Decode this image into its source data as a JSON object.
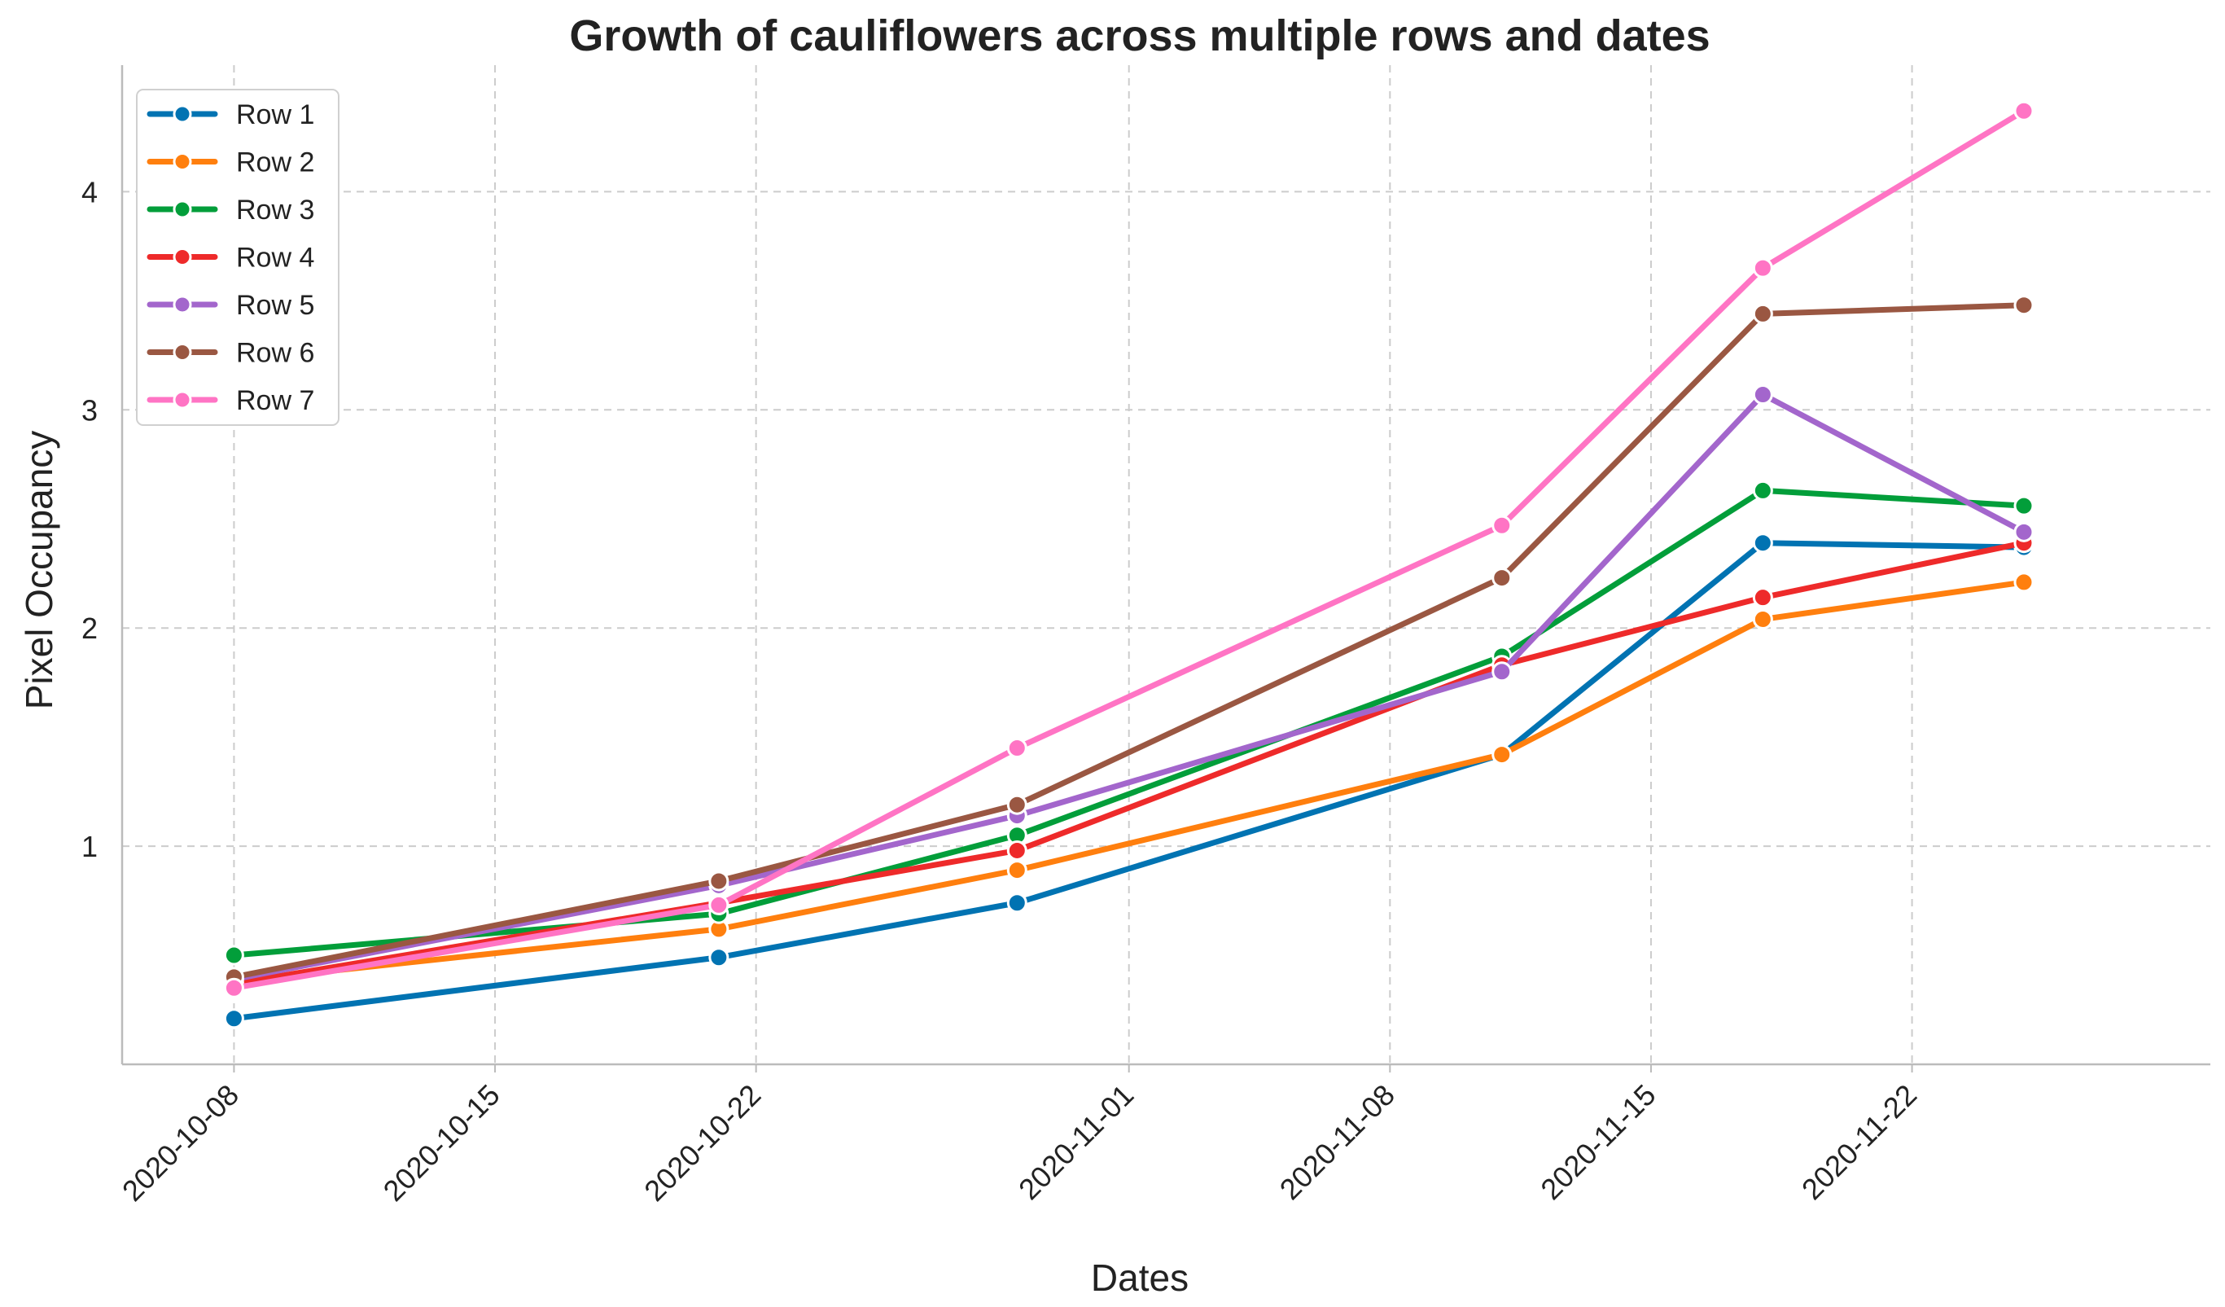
{
  "chart_data": {
    "type": "line",
    "title": "Growth of cauliflowers across multiple rows and dates",
    "xlabel": "Dates",
    "ylabel": "Pixel Occupancy",
    "x": [
      "2020-10-08",
      "2020-10-21",
      "2020-10-29",
      "2020-11-11",
      "2020-11-18",
      "2020-11-25"
    ],
    "xlim": [
      "2020-10-05",
      "2020-11-30"
    ],
    "ylim": [
      0.0,
      4.58
    ],
    "xticks": [
      "2020-10-08",
      "2020-10-15",
      "2020-10-22",
      "2020-11-01",
      "2020-11-08",
      "2020-11-15",
      "2020-11-22"
    ],
    "yticks": [
      1,
      2,
      3,
      4
    ],
    "grid": true,
    "legend_position": "top-left",
    "series": [
      {
        "name": "Row 1",
        "color": "#0173b2",
        "values": [
          0.21,
          0.49,
          0.74,
          1.42,
          2.39,
          2.37
        ]
      },
      {
        "name": "Row 2",
        "color": "#ff7f0e",
        "values": [
          0.38,
          0.62,
          0.89,
          1.42,
          2.04,
          2.21
        ]
      },
      {
        "name": "Row 3",
        "color": "#029e3a",
        "values": [
          0.5,
          0.69,
          1.05,
          1.87,
          2.63,
          2.56
        ]
      },
      {
        "name": "Row 4",
        "color": "#ee2a2a",
        "values": [
          0.37,
          0.74,
          0.98,
          1.83,
          2.14,
          2.39
        ]
      },
      {
        "name": "Row 5",
        "color": "#a366cc",
        "values": [
          0.39,
          0.82,
          1.14,
          1.8,
          3.07,
          2.44
        ]
      },
      {
        "name": "Row 6",
        "color": "#9a5742",
        "values": [
          0.4,
          0.84,
          1.19,
          2.23,
          3.44,
          3.48
        ]
      },
      {
        "name": "Row 7",
        "color": "#ff74c4",
        "values": [
          0.35,
          0.73,
          1.45,
          2.47,
          3.65,
          4.37
        ]
      }
    ]
  }
}
